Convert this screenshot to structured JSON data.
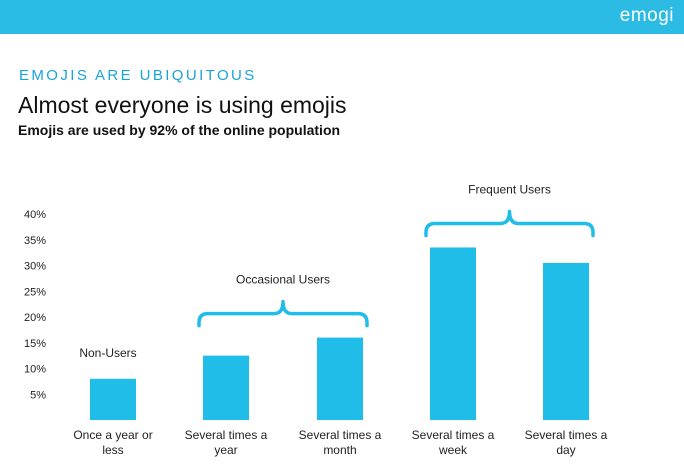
{
  "header": {
    "logo": "emogi",
    "kicker": "EMOJIS ARE UBIQUITOUS",
    "title": "Almost everyone is using emojis",
    "subtitle": "Emojis are used by 92% of the online population"
  },
  "colors": {
    "brand": "#2bbbe4",
    "bar": "#1fbde8",
    "bracket": "#1fbde8",
    "kicker": "#1aa3d6"
  },
  "chart_data": {
    "type": "bar",
    "title": "Almost everyone is using emojis",
    "xlabel": "",
    "ylabel": "",
    "ylim": [
      0,
      40
    ],
    "yticks": [
      5,
      10,
      15,
      20,
      25,
      30,
      35,
      40
    ],
    "ytick_labels": [
      "5%",
      "10%",
      "15%",
      "20%",
      "25%",
      "30%",
      "35%",
      "40%"
    ],
    "categories": [
      [
        "Once a year or",
        "less"
      ],
      [
        "Several times a",
        "year"
      ],
      [
        "Several times a",
        "month"
      ],
      [
        "Several times a",
        "week"
      ],
      [
        "Several times a",
        "day"
      ]
    ],
    "values": [
      8,
      12.5,
      16,
      33.5,
      30.5
    ],
    "groups": [
      {
        "label": "Non-Users",
        "start": 0,
        "end": 0,
        "bracket": false
      },
      {
        "label": "Occasional Users",
        "start": 1,
        "end": 2,
        "bracket": true
      },
      {
        "label": "Frequent Users",
        "start": 3,
        "end": 4,
        "bracket": true
      }
    ]
  }
}
